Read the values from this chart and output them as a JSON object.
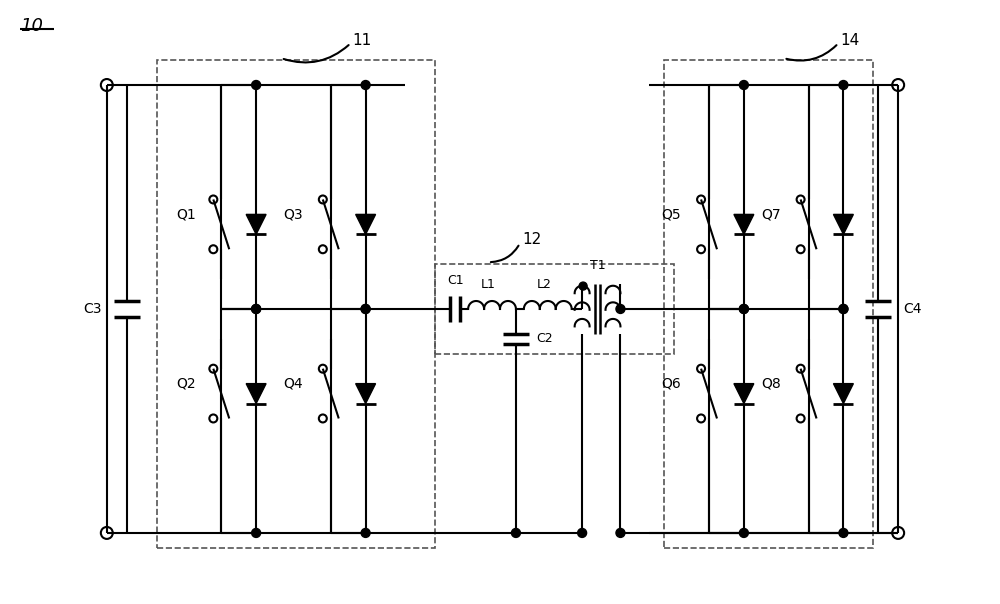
{
  "title": "10",
  "label_11": "11",
  "label_12": "12",
  "label_14": "14",
  "label_C3": "C3",
  "label_C4": "C4",
  "label_C1": "C1",
  "label_C2": "C2",
  "label_L1": "L1",
  "label_L2": "L2",
  "label_T1": "T1",
  "label_Q1": "Q1",
  "label_Q2": "Q2",
  "label_Q3": "Q3",
  "label_Q4": "Q4",
  "label_Q5": "Q5",
  "label_Q6": "Q6",
  "label_Q7": "Q7",
  "label_Q8": "Q8",
  "line_color": "#000000",
  "dash_color": "#555555",
  "bg_color": "#ffffff"
}
